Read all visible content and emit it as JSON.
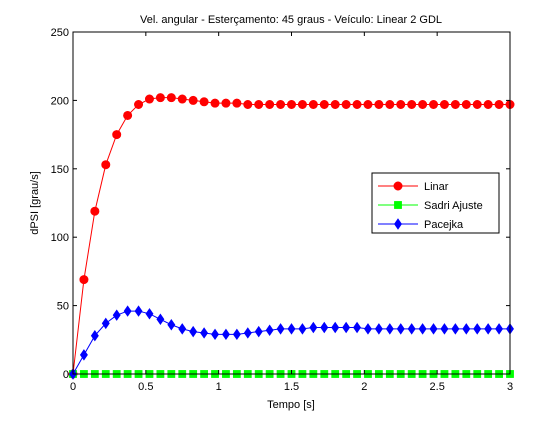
{
  "chart_data": {
    "type": "line",
    "title": "Vel. angular - Esterçamento: 45 graus - Veículo: Linear 2 GDL",
    "xlabel": "Tempo [s]",
    "ylabel": "dPSI [grau/s]",
    "xlim": [
      0,
      3
    ],
    "ylim": [
      0,
      250
    ],
    "xticks": [
      0,
      0.5,
      1,
      1.5,
      2,
      2.5,
      3
    ],
    "xtick_labels": [
      "0",
      "0.5",
      "1",
      "1.5",
      "2",
      "2.5",
      "3"
    ],
    "yticks": [
      0,
      50,
      100,
      150,
      200,
      250
    ],
    "ytick_labels": [
      "0",
      "50",
      "100",
      "150",
      "200",
      "250"
    ],
    "grid": false,
    "legend_position": "right",
    "x": [
      0,
      0.075,
      0.15,
      0.225,
      0.3,
      0.375,
      0.45,
      0.525,
      0.6,
      0.675,
      0.75,
      0.825,
      0.9,
      0.975,
      1.05,
      1.125,
      1.2,
      1.275,
      1.35,
      1.425,
      1.5,
      1.575,
      1.65,
      1.725,
      1.8,
      1.875,
      1.95,
      2.025,
      2.1,
      2.175,
      2.25,
      2.325,
      2.4,
      2.475,
      2.55,
      2.625,
      2.7,
      2.775,
      2.85,
      2.925,
      3.0
    ],
    "series": [
      {
        "name": "Linar",
        "color": "#ff0000",
        "marker": "circle",
        "values": [
          0,
          69,
          119,
          153,
          175,
          189,
          197,
          201,
          202,
          202,
          201,
          200,
          199,
          198,
          198,
          198,
          197,
          197,
          197,
          197,
          197,
          197,
          197,
          197,
          197,
          197,
          197,
          197,
          197,
          197,
          197,
          197,
          197,
          197,
          197,
          197,
          197,
          197,
          197,
          197,
          197
        ]
      },
      {
        "name": "Sadri Ajuste",
        "color": "#00ff00",
        "marker": "square",
        "values": [
          0,
          0,
          0,
          0,
          0,
          0,
          0,
          0,
          0,
          0,
          0,
          0,
          0,
          0,
          0,
          0,
          0,
          0,
          0,
          0,
          0,
          0,
          0,
          0,
          0,
          0,
          0,
          0,
          0,
          0,
          0,
          0,
          0,
          0,
          0,
          0,
          0,
          0,
          0,
          0,
          0
        ]
      },
      {
        "name": "Pacejka",
        "color": "#0000ff",
        "marker": "diamond",
        "values": [
          0,
          14,
          28,
          37,
          43,
          46,
          46,
          44,
          40,
          36,
          33,
          31,
          30,
          29,
          29,
          29,
          30,
          31,
          32,
          33,
          33,
          33,
          34,
          34,
          34,
          34,
          34,
          33,
          33,
          33,
          33,
          33,
          33,
          33,
          33,
          33,
          33,
          33,
          33,
          33,
          33
        ]
      }
    ]
  }
}
